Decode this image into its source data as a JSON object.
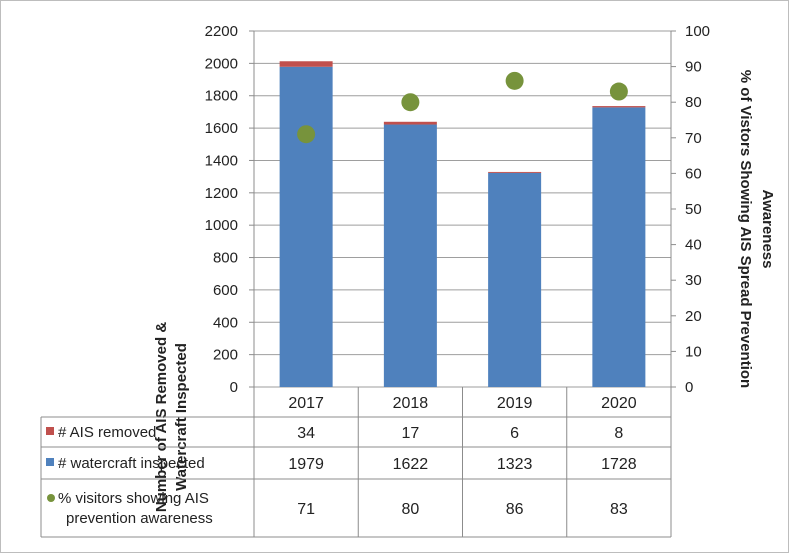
{
  "chart_data": {
    "type": "bar",
    "categories": [
      "2017",
      "2018",
      "2019",
      "2020"
    ],
    "series": [
      {
        "name": "# watercraft inspected",
        "values": [
          1979,
          1622,
          1323,
          1728
        ],
        "color": "#4f81bd",
        "kind": "stacked-bar",
        "axis": "left"
      },
      {
        "name": "# AIS removed",
        "values": [
          34,
          17,
          6,
          8
        ],
        "color": "#c0504d",
        "kind": "stacked-bar",
        "axis": "left"
      },
      {
        "name": "% visitors showing AIS prevention awareness",
        "values": [
          71,
          80,
          86,
          83
        ],
        "color": "#77933c",
        "kind": "scatter",
        "axis": "right"
      }
    ],
    "ylabel": "Number of AIS Removed & Watercraft Inspected",
    "ylabel_lines": [
      "Number of AIS Removed &",
      "Watercraft Inspected"
    ],
    "y2label": "% of Vistors Showing AIS Spread Prevention Awareness",
    "y2label_lines": [
      "% of Vistors  Showing AIS Spread Prevention",
      "Awareness"
    ],
    "ylim": [
      0,
      2200
    ],
    "yticks": [
      "2200",
      "2000",
      "1800",
      "1600",
      "1400",
      "1200",
      "1000",
      "800",
      "600",
      "400",
      "200",
      "0"
    ],
    "y2lim": [
      0,
      100
    ],
    "y2ticks": [
      "100",
      "90",
      "80",
      "70",
      "60",
      "50",
      "40",
      "30",
      "20",
      "10",
      "0"
    ],
    "grid": true,
    "table": {
      "rows": [
        {
          "label_lines": [
            "# AIS removed"
          ],
          "series": 1,
          "cells": [
            "34",
            "17",
            "6",
            "8"
          ]
        },
        {
          "label_lines": [
            "# watercraft inspected"
          ],
          "series": 0,
          "cells": [
            "1979",
            "1622",
            "1323",
            "1728"
          ]
        },
        {
          "label_lines": [
            "% visitors showing AIS",
            "prevention awareness"
          ],
          "series": 2,
          "cells": [
            "71",
            "80",
            "86",
            "83"
          ]
        }
      ]
    }
  }
}
